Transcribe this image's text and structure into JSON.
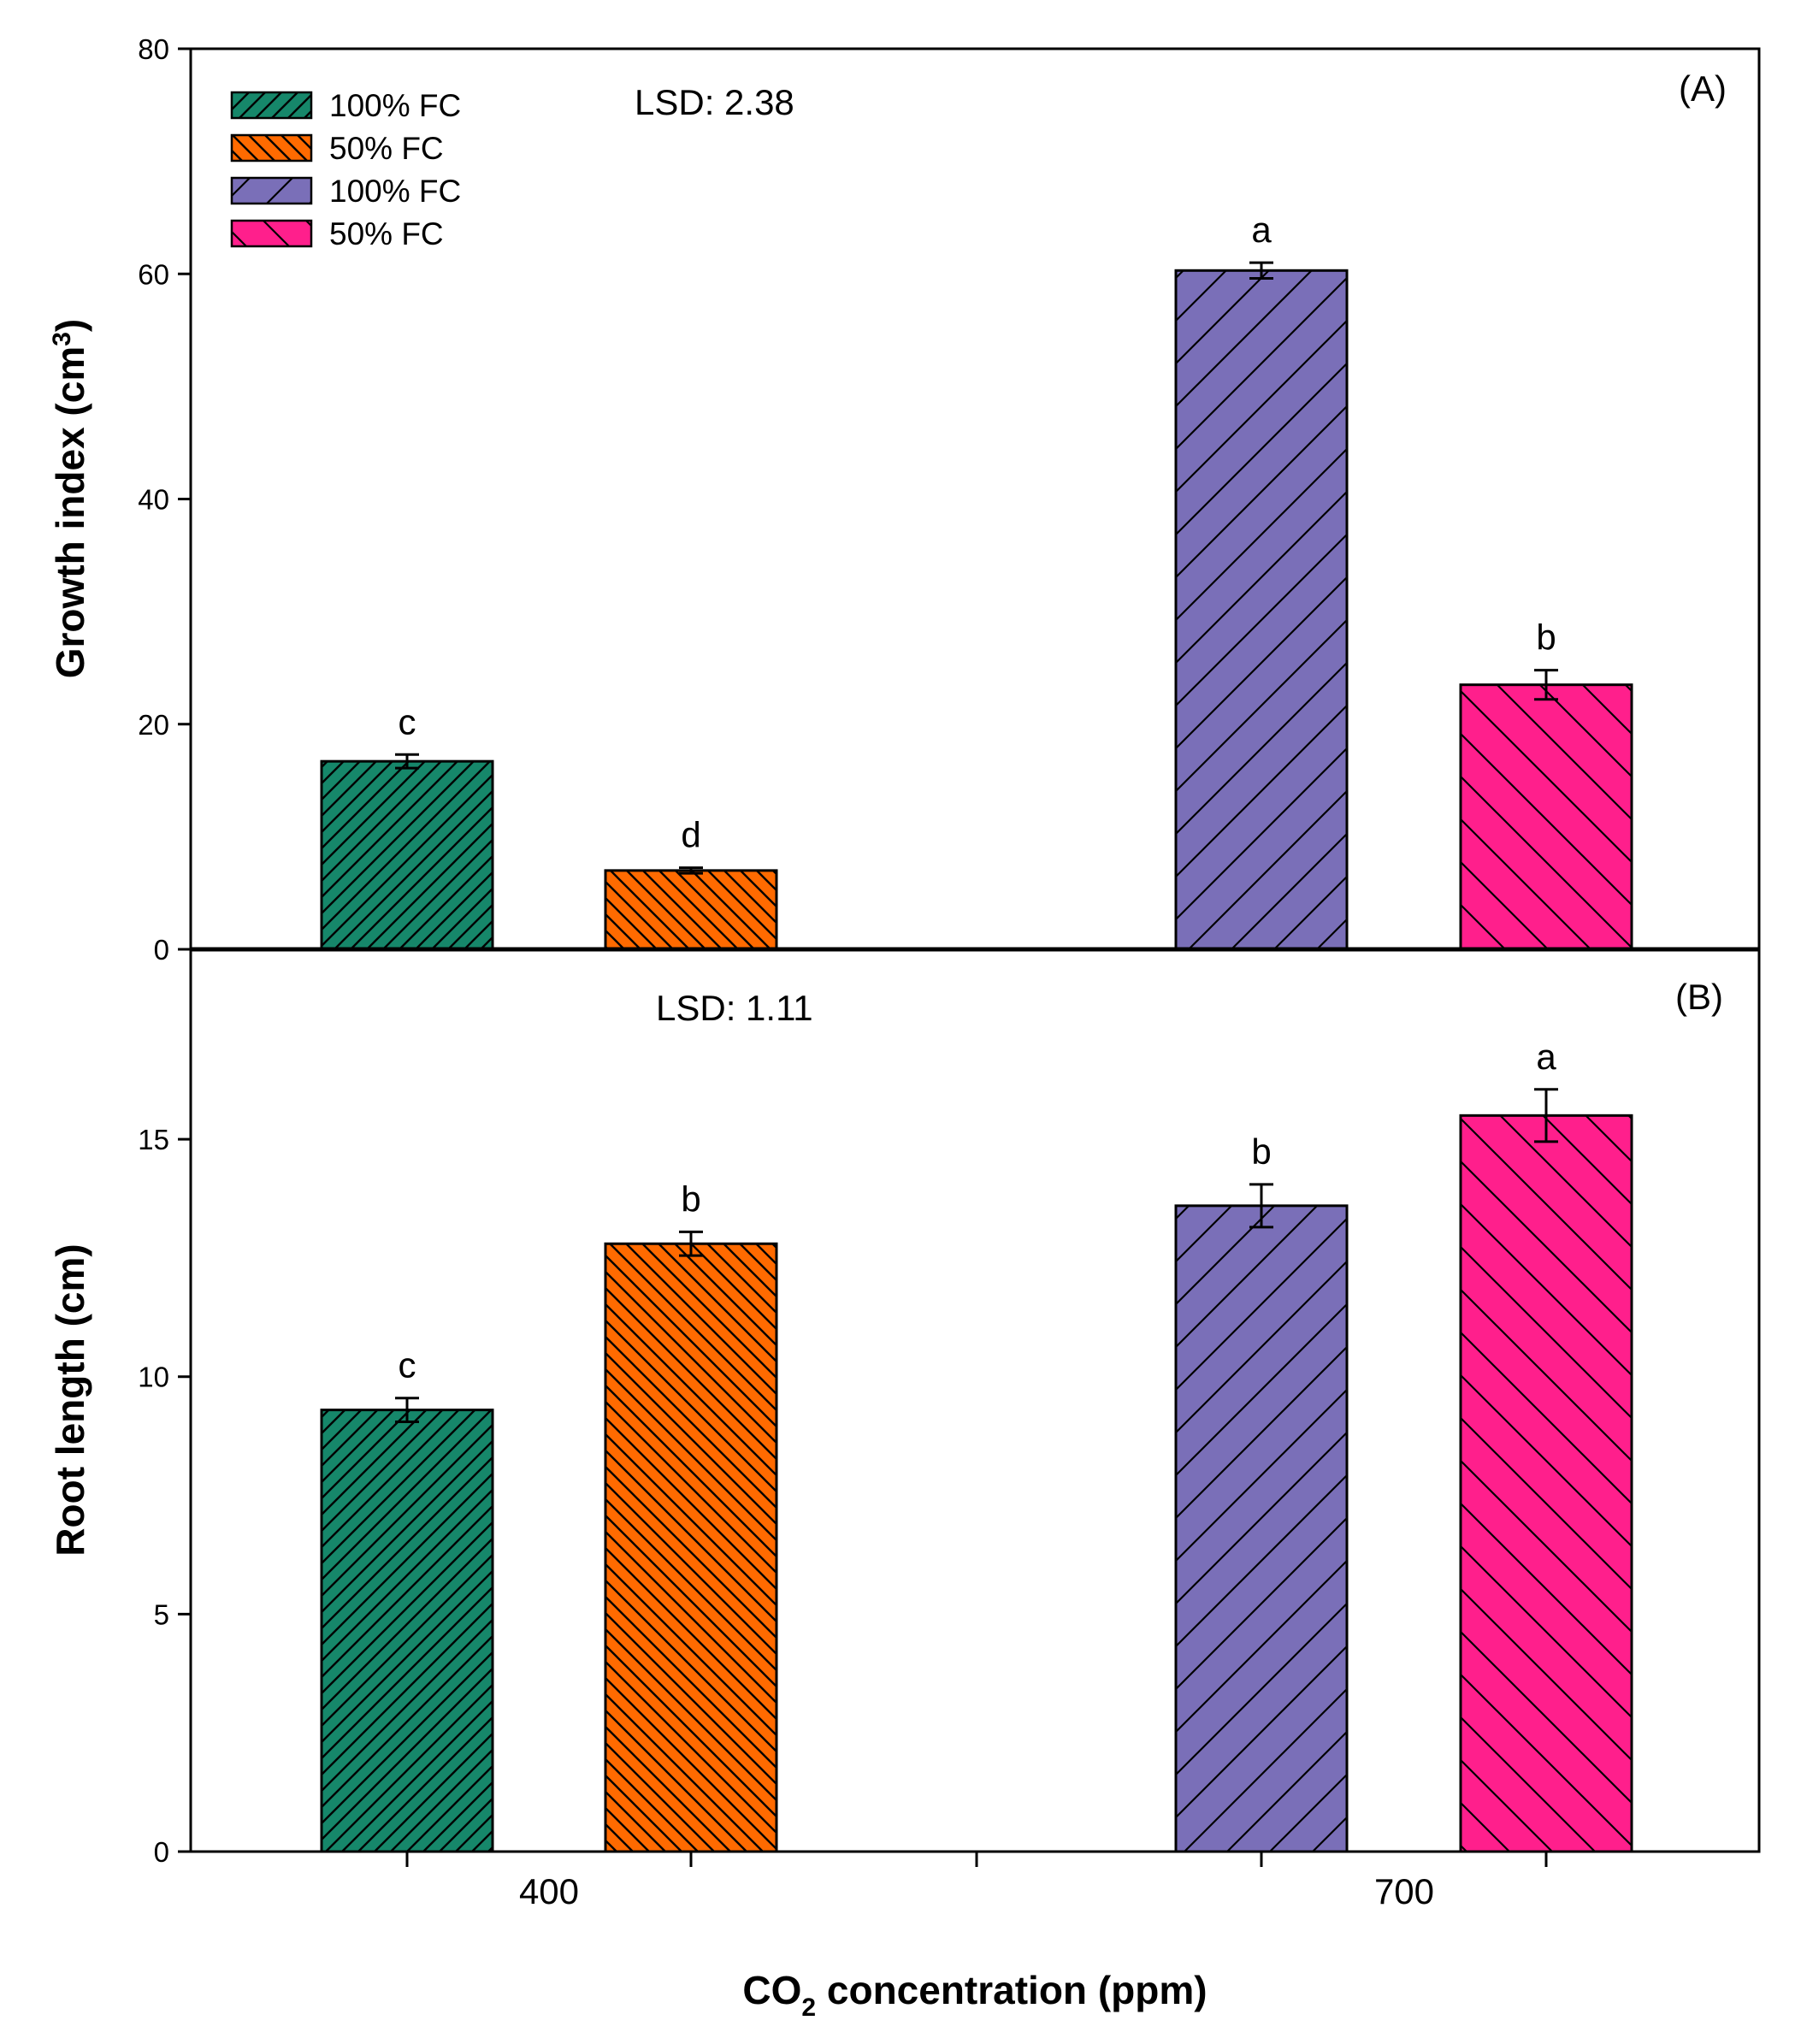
{
  "chart_data": [
    {
      "type": "bar",
      "panel_label": "(A)",
      "annotation": "LSD: 2.38",
      "ylabel": "Growth index (cm",
      "ylabel_sup": "3",
      "ylabel_close": ")",
      "ylim": [
        0,
        80
      ],
      "yticks": [
        "0",
        "20",
        "40",
        "60",
        "80"
      ],
      "categories": [
        "400",
        "700"
      ],
      "series": [
        {
          "name": "100% FC",
          "group": "400",
          "value": 16.7,
          "error": 0.6,
          "letter": "c"
        },
        {
          "name": "50% FC",
          "group": "400",
          "value": 7.0,
          "error": 0.25,
          "letter": "d"
        },
        {
          "name": "100% FC",
          "group": "700",
          "value": 60.3,
          "error": 0.7,
          "letter": "a"
        },
        {
          "name": "50% FC",
          "group": "700",
          "value": 23.5,
          "error": 1.3,
          "letter": "b"
        }
      ]
    },
    {
      "type": "bar",
      "panel_label": "(B)",
      "annotation": "LSD: 1.11",
      "ylabel": "Root length (cm)",
      "ylim": [
        0,
        19
      ],
      "yticks": [
        "0",
        "5",
        "10",
        "15"
      ],
      "categories": [
        "400",
        "700"
      ],
      "series": [
        {
          "name": "100% FC",
          "group": "400",
          "value": 9.3,
          "error": 0.25,
          "letter": "c"
        },
        {
          "name": "50% FC",
          "group": "400",
          "value": 12.8,
          "error": 0.25,
          "letter": "b"
        },
        {
          "name": "100% FC",
          "group": "700",
          "value": 13.6,
          "error": 0.45,
          "letter": "b"
        },
        {
          "name": "50% FC",
          "group": "700",
          "value": 15.5,
          "error": 0.55,
          "letter": "a"
        }
      ]
    }
  ],
  "legend": [
    {
      "label": "100% FC",
      "color": "#16876a",
      "hatch": "dense-up"
    },
    {
      "label": "50% FC",
      "color": "#ff6a00",
      "hatch": "dense-down"
    },
    {
      "label": "100% FC",
      "color": "#7a6fb8",
      "hatch": "wide-up"
    },
    {
      "label": "50% FC",
      "color": "#ff1f8c",
      "hatch": "wide-down"
    }
  ],
  "xlabel": {
    "prefix": "CO",
    "sub": "2",
    "suffix": " concentration (ppm)"
  },
  "x_tick_labels": [
    "400",
    "700"
  ]
}
